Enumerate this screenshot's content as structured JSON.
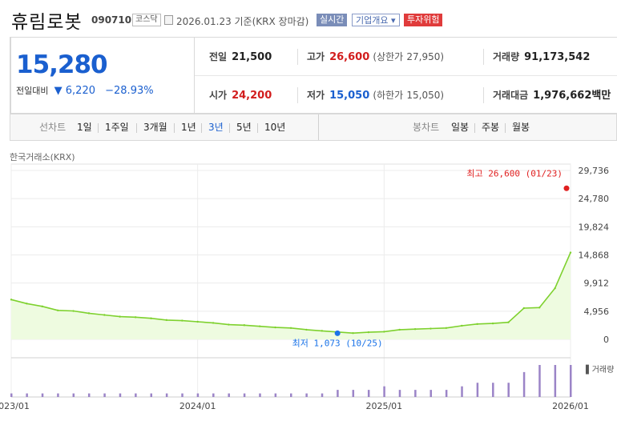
{
  "stock": {
    "name": "휴림로봇",
    "code": "090710",
    "market": "코스닥",
    "date": "2026.01.23  기준(KRX 장마감)",
    "badges": {
      "live": "실시간",
      "info": "기업개요 ▾",
      "risk": "투자위험"
    }
  },
  "price": {
    "current": "15,280",
    "change_label": "전일대비",
    "change_arrow": "▼",
    "change": "6,220",
    "change_pct": "−28.93%"
  },
  "stats": {
    "prev_label": "전일",
    "prev": "21,500",
    "high_label": "고가",
    "high": "26,600",
    "upper_limit_label": "(상한가",
    "upper_limit": "27,950)",
    "volume_label": "거래량",
    "volume": "91,173,542",
    "open_label": "시가",
    "open": "24,200",
    "low_label": "저가",
    "low": "15,050",
    "lower_limit_label": "(하한가",
    "lower_limit": "15,050)",
    "amount_label": "거래대금",
    "amount": "1,976,662",
    "amount_unit": "백만"
  },
  "tabs": {
    "line_label": "선차트",
    "line": [
      "1일",
      "1주일",
      "3개월",
      "1년",
      "3년",
      "5년",
      "10년"
    ],
    "selected": "3년",
    "candle_label": "봉차트",
    "candle": [
      "일봉",
      "주봉",
      "월봉"
    ]
  },
  "source": "한국거래소(KRX)",
  "chart_data": {
    "type": "line",
    "title": "",
    "xlabel": "",
    "ylabel": "",
    "ylim": [
      0,
      29736
    ],
    "yticks": [
      "29,736",
      "24,780",
      "19,824",
      "14,868",
      "9,912",
      "4,956",
      "0"
    ],
    "xticks": [
      "2023/01",
      "2024/01",
      "2025/01",
      "2026/01"
    ],
    "x": [
      "2023/01",
      "2023/02",
      "2023/03",
      "2023/04",
      "2023/05",
      "2023/06",
      "2023/07",
      "2023/08",
      "2023/09",
      "2023/10",
      "2023/11",
      "2023/12",
      "2024/01",
      "2024/02",
      "2024/03",
      "2024/04",
      "2024/05",
      "2024/06",
      "2024/07",
      "2024/08",
      "2024/09",
      "2024/10",
      "2024/11",
      "2024/12",
      "2025/01",
      "2025/02",
      "2025/03",
      "2025/04",
      "2025/05",
      "2025/06",
      "2025/07",
      "2025/08",
      "2025/09",
      "2025/10",
      "2025/11",
      "2025/12",
      "2026/01"
    ],
    "values": [
      7000,
      6300,
      5800,
      5100,
      5000,
      4600,
      4300,
      4000,
      3900,
      3700,
      3400,
      3300,
      3100,
      2900,
      2600,
      2500,
      2300,
      2100,
      2000,
      1700,
      1500,
      1300,
      1100,
      1250,
      1350,
      1700,
      1800,
      1900,
      2000,
      2400,
      2700,
      2800,
      3000,
      5500,
      5600,
      9000,
      15280
    ],
    "high": {
      "label": "최고 26,600 (01/23)",
      "value": 26600,
      "x": "2026/01"
    },
    "low": {
      "label": "최저 1,073 (10/25)",
      "value": 1073,
      "x": "2024/10"
    },
    "volume_label": "▌거래량",
    "volume": [
      1,
      1,
      1,
      1,
      1,
      1,
      1,
      1,
      1,
      1,
      1,
      1,
      1,
      1,
      1,
      1,
      1,
      1,
      1,
      1,
      1,
      2,
      2,
      2,
      3,
      2,
      2,
      2,
      2,
      3,
      4,
      4,
      4,
      7,
      9,
      9,
      9
    ],
    "colors": {
      "line": "#7ed12e",
      "fill": "#eefbe0",
      "volume": "#9b84c7",
      "high": "#e02020",
      "low": "#1a73e8"
    }
  }
}
